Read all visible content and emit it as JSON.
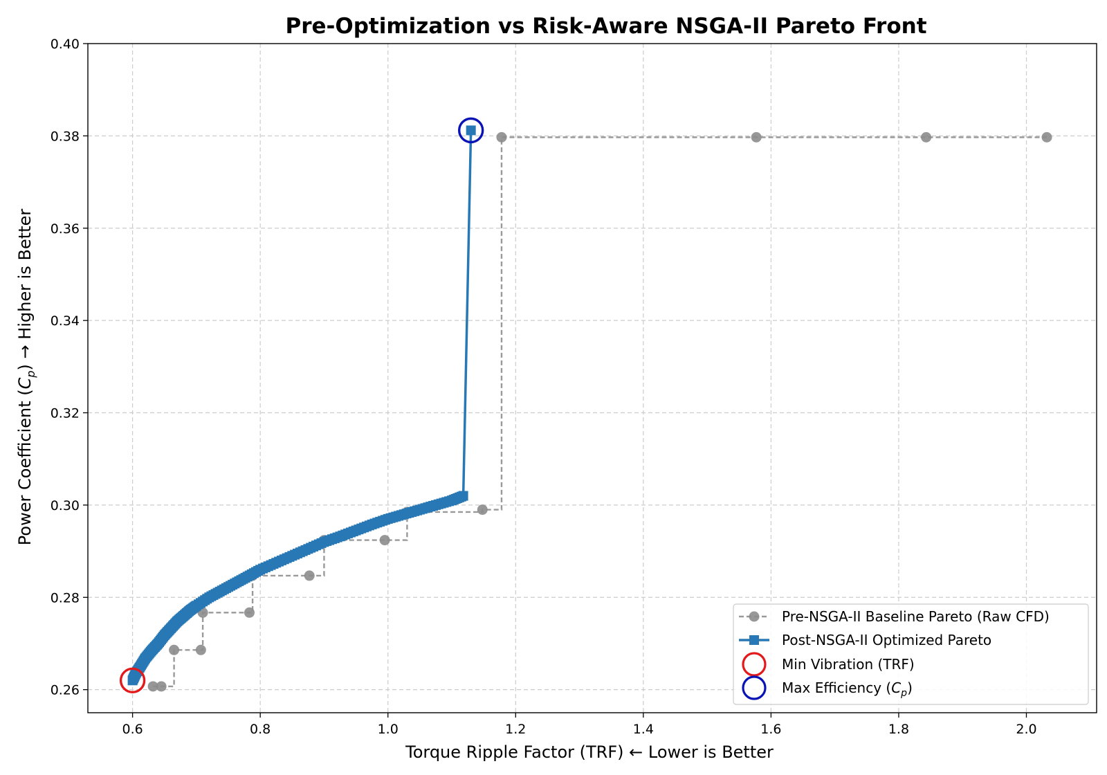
{
  "chart_data": {
    "type": "line",
    "title": "Pre-Optimization vs Risk-Aware NSGA-II Pareto Front",
    "xlabel": "Torque Ripple Factor (TRF) ← Lower is Better",
    "ylabel": "Power Coefficient (Cp) → Higher is Better",
    "ylabel_parts": [
      "Power Coefficient (",
      "C",
      "p",
      ") → Higher is Better"
    ],
    "xlim": [
      0.53,
      2.11
    ],
    "ylim": [
      0.255,
      0.4
    ],
    "xticks": [
      0.6,
      0.8,
      1.0,
      1.2,
      1.4,
      1.6,
      1.8,
      2.0
    ],
    "xtick_labels": [
      "0.6",
      "0.8",
      "1.0",
      "1.2",
      "1.4",
      "1.6",
      "1.8",
      "2.0"
    ],
    "yticks": [
      0.26,
      0.28,
      0.3,
      0.32,
      0.34,
      0.36,
      0.38,
      0.4
    ],
    "ytick_labels": [
      "0.26",
      "0.28",
      "0.30",
      "0.32",
      "0.34",
      "0.36",
      "0.38",
      "0.40"
    ],
    "grid": true,
    "legend_position": "bottom-right",
    "series": [
      {
        "name": "Pre-NSGA-II Baseline Pareto (Raw CFD)",
        "color": "#999999",
        "line_style": "dashed-step",
        "marker": "circle",
        "points": [
          [
            0.632,
            0.2607
          ],
          [
            0.645,
            0.2607
          ],
          [
            0.665,
            0.2686
          ],
          [
            0.707,
            0.2686
          ],
          [
            0.71,
            0.2767
          ],
          [
            0.783,
            0.2767
          ],
          [
            0.788,
            0.2847
          ],
          [
            0.877,
            0.2847
          ],
          [
            0.9,
            0.2924
          ],
          [
            0.995,
            0.2924
          ],
          [
            1.03,
            0.2985
          ],
          [
            1.148,
            0.299
          ],
          [
            1.178,
            0.3797
          ],
          [
            1.577,
            0.3797
          ],
          [
            1.843,
            0.3797
          ],
          [
            2.032,
            0.3797
          ]
        ]
      },
      {
        "name": "Post-NSGA-II Optimized Pareto",
        "color": "#2878b5",
        "line_style": "solid",
        "marker": "square",
        "points": [
          [
            0.6,
            0.262
          ],
          [
            0.605,
            0.2635
          ],
          [
            0.612,
            0.265
          ],
          [
            0.62,
            0.2668
          ],
          [
            0.63,
            0.2685
          ],
          [
            0.64,
            0.27
          ],
          [
            0.65,
            0.2718
          ],
          [
            0.66,
            0.2733
          ],
          [
            0.67,
            0.2748
          ],
          [
            0.68,
            0.276
          ],
          [
            0.69,
            0.2772
          ],
          [
            0.7,
            0.2782
          ],
          [
            0.72,
            0.28
          ],
          [
            0.74,
            0.2815
          ],
          [
            0.76,
            0.283
          ],
          [
            0.78,
            0.2845
          ],
          [
            0.8,
            0.286
          ],
          [
            0.825,
            0.2875
          ],
          [
            0.85,
            0.289
          ],
          [
            0.875,
            0.2905
          ],
          [
            0.9,
            0.292
          ],
          [
            0.925,
            0.2932
          ],
          [
            0.95,
            0.2945
          ],
          [
            0.975,
            0.2958
          ],
          [
            1.0,
            0.297
          ],
          [
            1.025,
            0.298
          ],
          [
            1.05,
            0.299
          ],
          [
            1.075,
            0.3
          ],
          [
            1.1,
            0.301
          ],
          [
            1.118,
            0.302
          ],
          [
            1.13,
            0.3812
          ]
        ]
      }
    ],
    "highlights": [
      {
        "name": "Min Vibration (TRF)",
        "color": "#e31a1c",
        "x": 0.6,
        "y": 0.262
      },
      {
        "name": "Max Efficiency (Cp)",
        "color": "#0a14b4",
        "x": 1.13,
        "y": 0.3812
      }
    ],
    "legend": {
      "entries": [
        "Pre-NSGA-II Baseline Pareto (Raw CFD)",
        "Post-NSGA-II Optimized Pareto",
        "Min Vibration (TRF)",
        "Max Efficiency (Cp)"
      ],
      "max_eff_parts": [
        "Max Efficiency (",
        "C",
        "p",
        ")"
      ]
    }
  }
}
